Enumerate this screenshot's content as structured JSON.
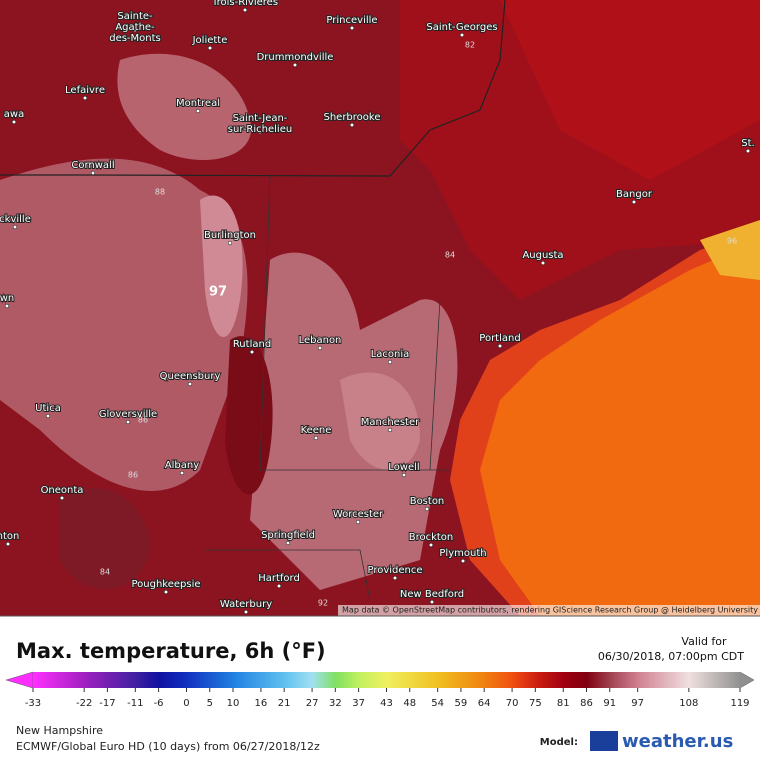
{
  "map": {
    "cities": [
      "Trois-Rivières",
      "Sainte-Agathe-des-Monts",
      "Joliette",
      "Princeville",
      "Saint-Georges",
      "Drummondville",
      "Lefaivre",
      "Montreal",
      "Saint-Jean-sur-Richelieu",
      "Sherbrooke",
      "awa",
      "Cornwall",
      "St.",
      "Bangor",
      "ckville",
      "Burlington",
      "Augusta",
      "wn",
      "Rutland",
      "Lebanon",
      "Portland",
      "Laconia",
      "Queensbury",
      "Utica",
      "Gloversville",
      "Manchester",
      "Keene",
      "Albany",
      "Lowell",
      "Oneonta",
      "Boston",
      "Worcester",
      "Springfield",
      "Brockton",
      "nton",
      "Plymouth",
      "Poughkeepsie",
      "Providence",
      "Hartford",
      "New Bedford",
      "Waterbury"
    ],
    "contour_labels": [
      "88",
      "97",
      "86",
      "86",
      "84",
      "92",
      "96",
      "82",
      "84"
    ],
    "attribution": "Map data © OpenStreetMap contributors, rendering GIScience Research Group @ Heidelberg University"
  },
  "footer": {
    "title": "Max. temperature, 6h (°F)",
    "valid_label": "Valid for",
    "valid_time": "06/30/2018, 07:00pm CDT",
    "region": "New Hampshire",
    "model_run": "ECMWF/Global Euro HD (10 days) from 06/27/2018/12z",
    "model_label": "Model:",
    "brand": "weather.us"
  },
  "colorbar": {
    "ticks": [
      -33,
      -22,
      -17,
      -11,
      -6,
      0,
      5,
      10,
      16,
      21,
      27,
      32,
      37,
      43,
      48,
      54,
      59,
      64,
      70,
      75,
      81,
      86,
      91,
      97,
      108,
      119
    ],
    "stops": [
      -33,
      -22,
      -11,
      -6,
      0,
      10,
      21,
      27,
      32,
      37,
      43,
      54,
      64,
      70,
      75,
      81,
      86,
      91,
      97,
      108,
      119
    ],
    "colors": [
      "#ff30ff",
      "#a020c0",
      "#4020a0",
      "#1010a0",
      "#1030c0",
      "#2080e0",
      "#60c0f0",
      "#a0e0f0",
      "#80e060",
      "#c0f060",
      "#f0f060",
      "#f0c020",
      "#f08010",
      "#f05010",
      "#d02010",
      "#a00010",
      "#800010",
      "#a04050",
      "#d08090",
      "#f0e0e0",
      "#909090"
    ]
  }
}
